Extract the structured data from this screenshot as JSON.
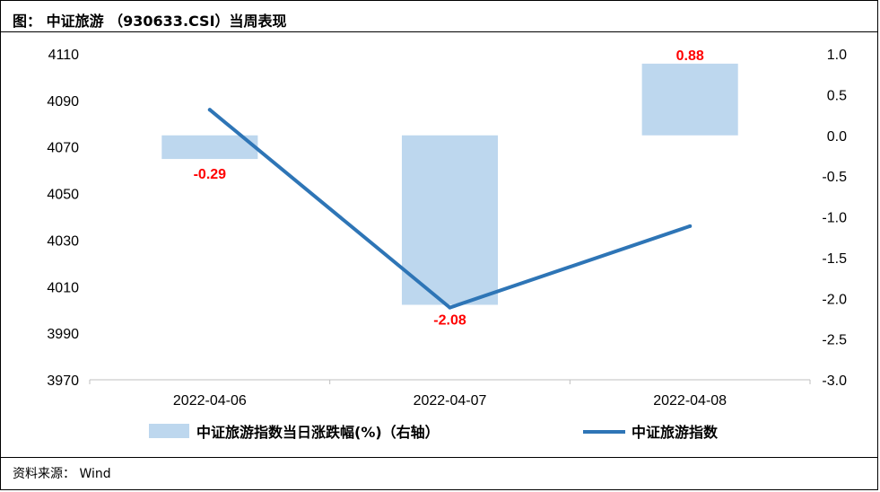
{
  "title": "图：  中证旅游 （930633.CSI）当周表现",
  "source": "资料来源：  Wind",
  "chart_data": {
    "type": "bar+line",
    "categories": [
      "2022-04-06",
      "2022-04-07",
      "2022-04-08"
    ],
    "series": [
      {
        "name": "中证旅游指数当日涨跌幅(%)（右轴）",
        "type": "bar",
        "axis": "right",
        "values": [
          -0.29,
          -2.08,
          0.88
        ],
        "labels": [
          "-0.29",
          "-2.08",
          "0.88"
        ],
        "color": "#bdd7ee"
      },
      {
        "name": "中证旅游指数",
        "type": "line",
        "axis": "left",
        "values": [
          4086,
          4001,
          4036
        ],
        "color": "#2e75b6"
      }
    ],
    "y_left": {
      "min": 3970,
      "max": 4110,
      "ticks": [
        "4110",
        "4090",
        "4070",
        "4050",
        "4030",
        "4010",
        "3990",
        "3970"
      ]
    },
    "y_right": {
      "min": -3.0,
      "max": 1.0,
      "ticks": [
        "1.0",
        "0.5",
        "0.0",
        "-0.5",
        "-1.0",
        "-1.5",
        "-2.0",
        "-2.5",
        "-3.0"
      ]
    },
    "grid": false,
    "legend_position": "bottom",
    "label_color": "#ff0000"
  }
}
